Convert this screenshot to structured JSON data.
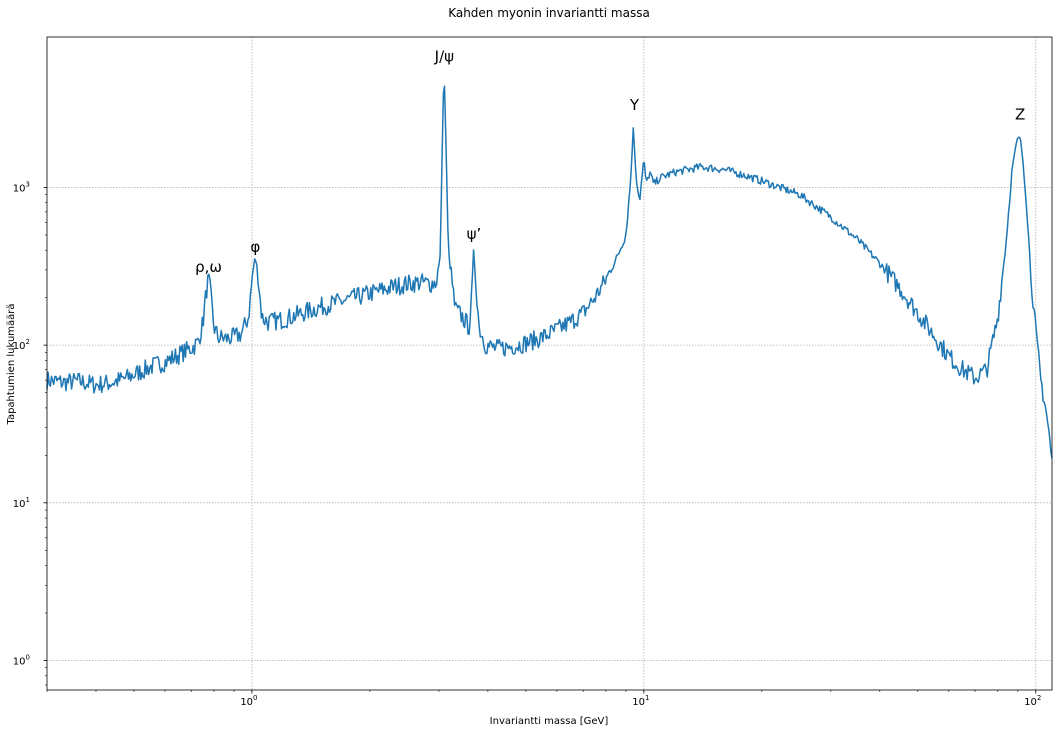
{
  "chart_data": {
    "type": "line",
    "title": "Kahden myonin invariantti massa",
    "xlabel": "Invariantti massa [GeV]",
    "ylabel": "Tapahtumien lukumäärä",
    "xscale": "log",
    "yscale": "log",
    "xlim": [
      0.3,
      110
    ],
    "ylim": [
      0.65,
      9000
    ],
    "grid": true,
    "x_ticks": [
      {
        "value": 1,
        "base": "10",
        "exp": "0"
      },
      {
        "value": 10,
        "base": "10",
        "exp": "1"
      },
      {
        "value": 100,
        "base": "10",
        "exp": "2"
      }
    ],
    "y_ticks": [
      {
        "value": 1,
        "base": "10",
        "exp": "0"
      },
      {
        "value": 10,
        "base": "10",
        "exp": "1"
      },
      {
        "value": 100,
        "base": "10",
        "exp": "2"
      },
      {
        "value": 1000,
        "base": "10",
        "exp": "3"
      }
    ],
    "series": [
      {
        "color": "#1f77b4",
        "points": [
          [
            0.3,
            60
          ],
          [
            0.33,
            58
          ],
          [
            0.36,
            59
          ],
          [
            0.4,
            56
          ],
          [
            0.44,
            58
          ],
          [
            0.48,
            62
          ],
          [
            0.52,
            68
          ],
          [
            0.56,
            74
          ],
          [
            0.6,
            78
          ],
          [
            0.64,
            85
          ],
          [
            0.68,
            92
          ],
          [
            0.71,
            98
          ],
          [
            0.73,
            105
          ],
          [
            0.75,
            140
          ],
          [
            0.765,
            220
          ],
          [
            0.775,
            265
          ],
          [
            0.785,
            210
          ],
          [
            0.8,
            130
          ],
          [
            0.82,
            112
          ],
          [
            0.86,
            110
          ],
          [
            0.9,
            112
          ],
          [
            0.94,
            118
          ],
          [
            0.98,
            150
          ],
          [
            1.005,
            290
          ],
          [
            1.02,
            360
          ],
          [
            1.035,
            290
          ],
          [
            1.06,
            150
          ],
          [
            1.1,
            140
          ],
          [
            1.2,
            145
          ],
          [
            1.35,
            160
          ],
          [
            1.5,
            175
          ],
          [
            1.7,
            190
          ],
          [
            1.9,
            205
          ],
          [
            2.1,
            220
          ],
          [
            2.3,
            235
          ],
          [
            2.5,
            245
          ],
          [
            2.7,
            250
          ],
          [
            2.85,
            245
          ],
          [
            2.95,
            250
          ],
          [
            3.02,
            350
          ],
          [
            3.06,
            1800
          ],
          [
            3.09,
            6000
          ],
          [
            3.12,
            2400
          ],
          [
            3.17,
            400
          ],
          [
            3.3,
            170
          ],
          [
            3.45,
            150
          ],
          [
            3.58,
            130
          ],
          [
            3.64,
            200
          ],
          [
            3.68,
            400
          ],
          [
            3.72,
            270
          ],
          [
            3.8,
            130
          ],
          [
            3.95,
            100
          ],
          [
            4.2,
            95
          ],
          [
            4.5,
            97
          ],
          [
            5.0,
            103
          ],
          [
            5.5,
            112
          ],
          [
            6.0,
            125
          ],
          [
            6.5,
            140
          ],
          [
            7.0,
            160
          ],
          [
            7.5,
            200
          ],
          [
            8.0,
            260
          ],
          [
            8.5,
            350
          ],
          [
            9.0,
            500
          ],
          [
            9.25,
            1100
          ],
          [
            9.4,
            2400
          ],
          [
            9.55,
            1200
          ],
          [
            9.75,
            820
          ],
          [
            10.0,
            1500
          ],
          [
            10.15,
            1050
          ],
          [
            10.35,
            1250
          ],
          [
            10.6,
            1050
          ],
          [
            11.0,
            1150
          ],
          [
            12.0,
            1250
          ],
          [
            14.0,
            1350
          ],
          [
            16.0,
            1300
          ],
          [
            18.0,
            1200
          ],
          [
            20.0,
            1100
          ],
          [
            25.0,
            900
          ],
          [
            30.0,
            650
          ],
          [
            35.0,
            470
          ],
          [
            40.0,
            330
          ],
          [
            45.0,
            230
          ],
          [
            50.0,
            160
          ],
          [
            55.0,
            115
          ],
          [
            60.0,
            85
          ],
          [
            65.0,
            70
          ],
          [
            70.0,
            62
          ],
          [
            75.0,
            70
          ],
          [
            80.0,
            150
          ],
          [
            84.0,
            450
          ],
          [
            87.0,
            1300
          ],
          [
            89.5,
            2000
          ],
          [
            91.2,
            2100
          ],
          [
            93.0,
            1400
          ],
          [
            95.0,
            700
          ],
          [
            97.0,
            300
          ],
          [
            100.0,
            120
          ],
          [
            103.0,
            60
          ],
          [
            106.0,
            40
          ],
          [
            108.0,
            28
          ],
          [
            110.0,
            18
          ]
        ]
      }
    ],
    "annotations": [
      {
        "text": "ρ,ω",
        "x": 0.775,
        "y": 290
      },
      {
        "text": "φ",
        "x": 1.02,
        "y": 390
      },
      {
        "text": "J/ψ",
        "x": 3.097,
        "y": 6300
      },
      {
        "text": "ψ’",
        "x": 3.686,
        "y": 470
      },
      {
        "text": "Υ",
        "x": 9.46,
        "y": 3100
      },
      {
        "text": "Z",
        "x": 91.2,
        "y": 2700
      }
    ]
  }
}
